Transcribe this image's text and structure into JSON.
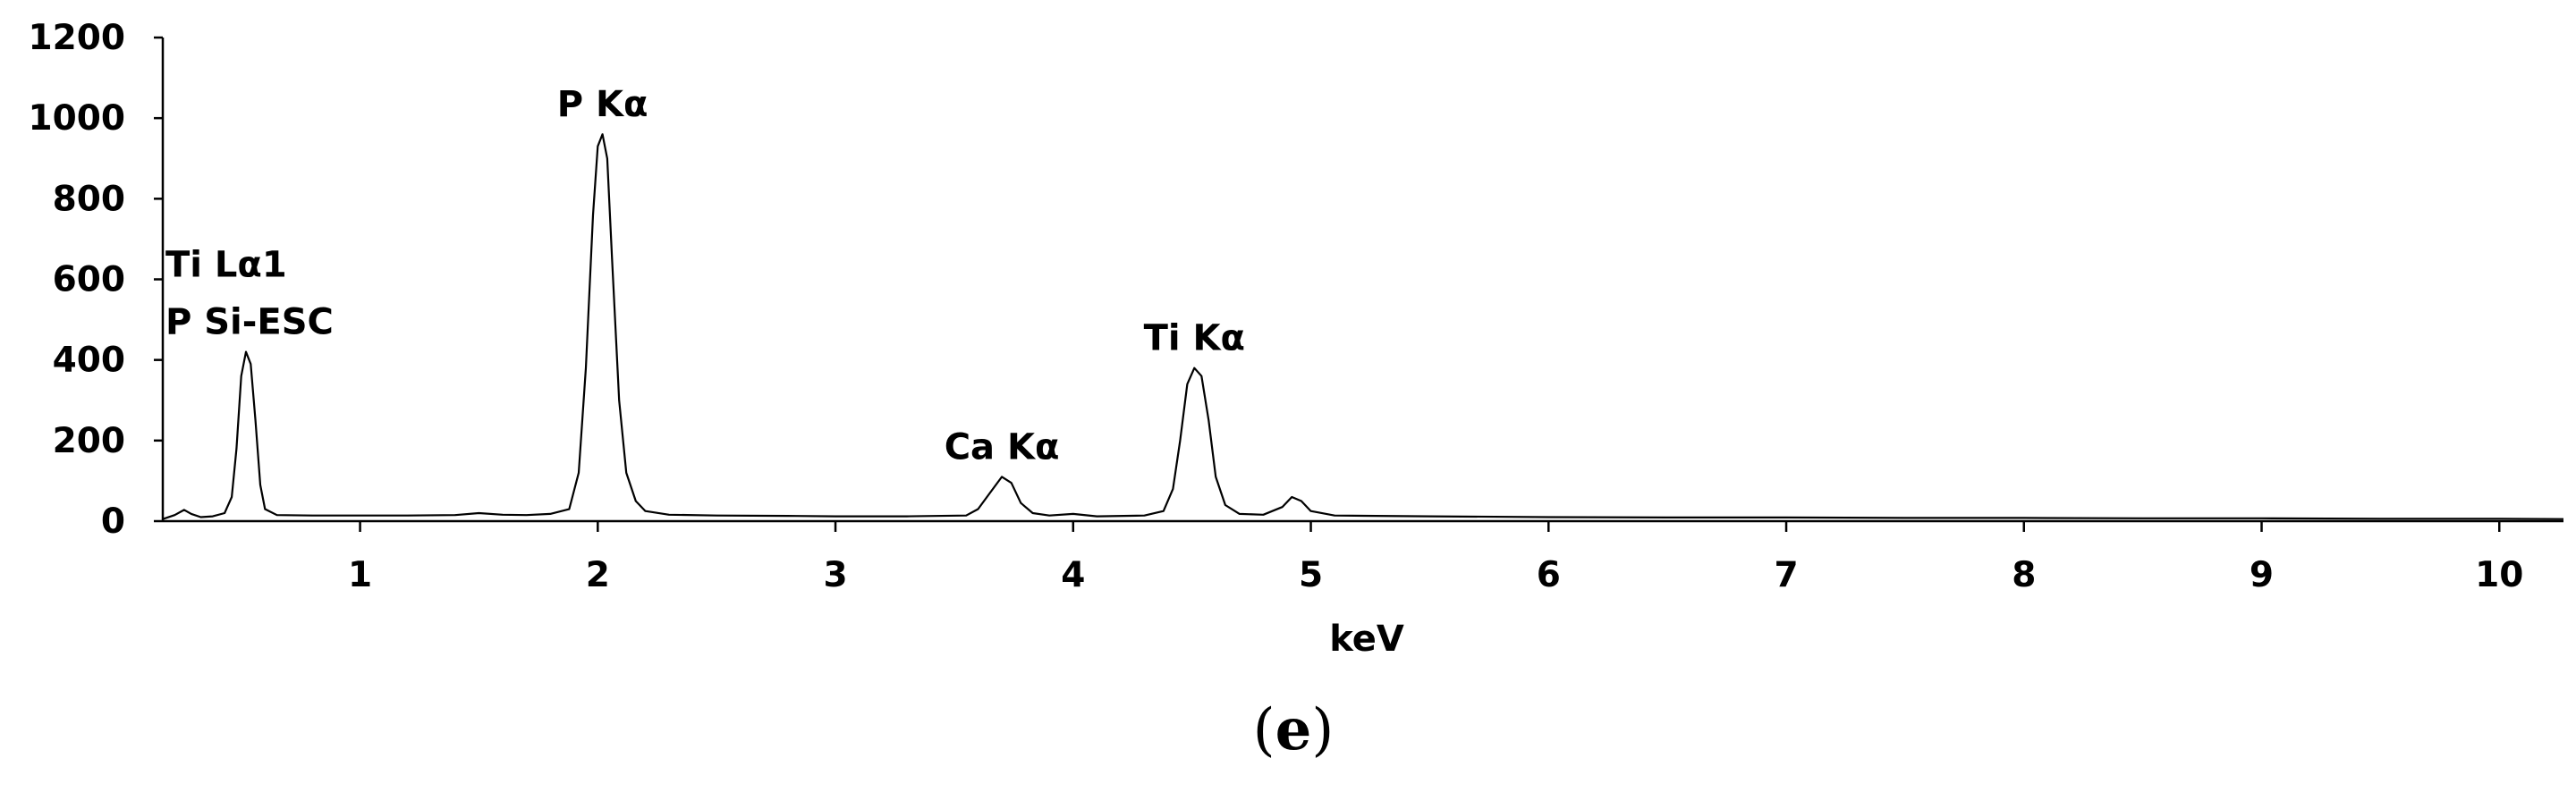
{
  "chart_data": {
    "type": "line",
    "xlabel": "keV",
    "ylabel": "",
    "xlim": [
      0.17,
      10.27
    ],
    "ylim": [
      0,
      1200
    ],
    "x_ticks": [
      1,
      2,
      3,
      4,
      5,
      6,
      7,
      8,
      9,
      10
    ],
    "y_ticks": [
      0,
      200,
      400,
      600,
      800,
      1000,
      1200
    ],
    "grid": false,
    "panel_label": {
      "open": "(",
      "letter": "e",
      "close": ")"
    },
    "peak_labels": [
      {
        "lines": [
          "Ti Lα1",
          "P Si-ESC"
        ],
        "x": 0.52,
        "y": 420
      },
      {
        "lines": [
          "P Kα"
        ],
        "x": 2.02,
        "y": 960
      },
      {
        "lines": [
          "Ca Kα"
        ],
        "x": 3.7,
        "y": 110
      },
      {
        "lines": [
          "Ti Kα"
        ],
        "x": 4.51,
        "y": 380
      }
    ],
    "series": [
      {
        "points": [
          [
            0.17,
            5
          ],
          [
            0.22,
            15
          ],
          [
            0.26,
            28
          ],
          [
            0.29,
            18
          ],
          [
            0.33,
            10
          ],
          [
            0.38,
            12
          ],
          [
            0.43,
            20
          ],
          [
            0.46,
            60
          ],
          [
            0.48,
            180
          ],
          [
            0.5,
            360
          ],
          [
            0.52,
            420
          ],
          [
            0.54,
            390
          ],
          [
            0.56,
            250
          ],
          [
            0.58,
            90
          ],
          [
            0.6,
            30
          ],
          [
            0.65,
            15
          ],
          [
            0.8,
            14
          ],
          [
            1.0,
            14
          ],
          [
            1.2,
            14
          ],
          [
            1.4,
            15
          ],
          [
            1.5,
            20
          ],
          [
            1.6,
            16
          ],
          [
            1.7,
            15
          ],
          [
            1.8,
            18
          ],
          [
            1.88,
            30
          ],
          [
            1.92,
            120
          ],
          [
            1.95,
            380
          ],
          [
            1.98,
            760
          ],
          [
            2.0,
            930
          ],
          [
            2.02,
            960
          ],
          [
            2.04,
            900
          ],
          [
            2.06,
            650
          ],
          [
            2.09,
            300
          ],
          [
            2.12,
            120
          ],
          [
            2.16,
            50
          ],
          [
            2.2,
            25
          ],
          [
            2.3,
            16
          ],
          [
            2.5,
            14
          ],
          [
            2.8,
            13
          ],
          [
            3.0,
            12
          ],
          [
            3.3,
            12
          ],
          [
            3.55,
            14
          ],
          [
            3.6,
            30
          ],
          [
            3.65,
            70
          ],
          [
            3.7,
            110
          ],
          [
            3.74,
            95
          ],
          [
            3.78,
            45
          ],
          [
            3.83,
            20
          ],
          [
            3.9,
            14
          ],
          [
            4.0,
            18
          ],
          [
            4.1,
            12
          ],
          [
            4.3,
            14
          ],
          [
            4.38,
            25
          ],
          [
            4.42,
            80
          ],
          [
            4.45,
            200
          ],
          [
            4.48,
            340
          ],
          [
            4.51,
            380
          ],
          [
            4.54,
            360
          ],
          [
            4.57,
            250
          ],
          [
            4.6,
            110
          ],
          [
            4.64,
            40
          ],
          [
            4.7,
            18
          ],
          [
            4.8,
            16
          ],
          [
            4.88,
            35
          ],
          [
            4.92,
            60
          ],
          [
            4.96,
            50
          ],
          [
            5.0,
            25
          ],
          [
            5.1,
            14
          ],
          [
            5.5,
            12
          ],
          [
            6.0,
            10
          ],
          [
            6.5,
            9
          ],
          [
            7.0,
            9
          ],
          [
            7.5,
            8
          ],
          [
            8.0,
            8
          ],
          [
            8.5,
            7
          ],
          [
            9.0,
            7
          ],
          [
            9.5,
            6
          ],
          [
            10.0,
            6
          ],
          [
            10.27,
            5
          ]
        ]
      }
    ]
  }
}
